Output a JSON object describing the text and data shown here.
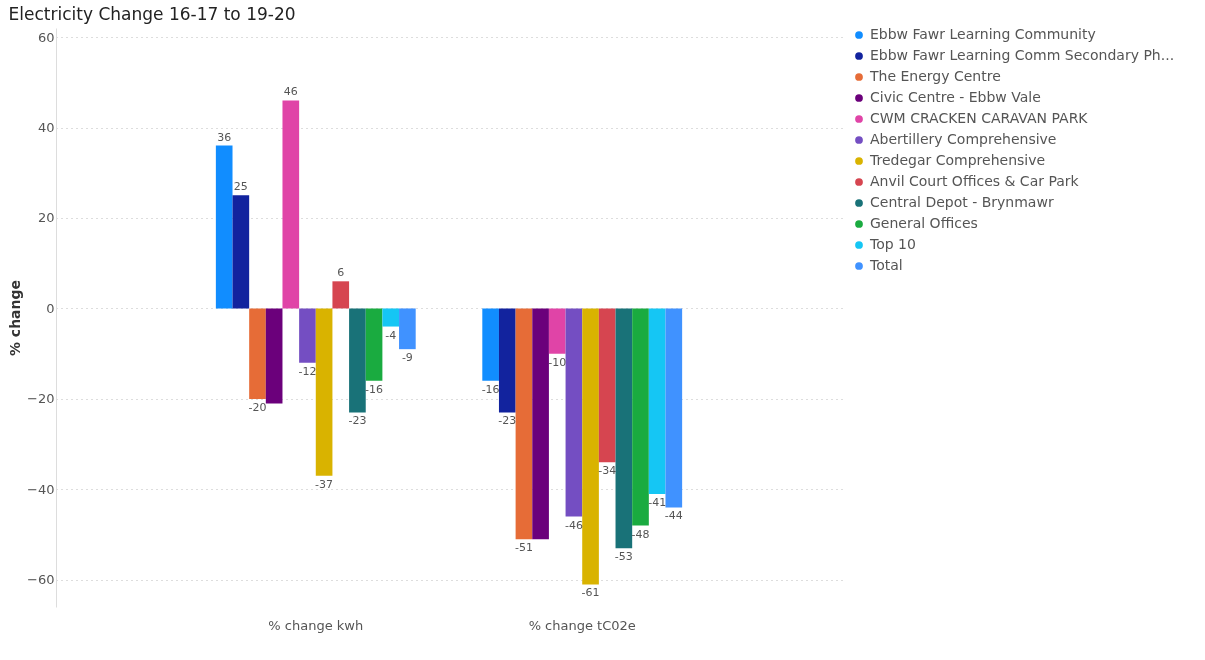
{
  "chart_data": {
    "type": "bar",
    "title": "Electricity Change 16-17 to 19-20",
    "ylabel": "% change",
    "categories": [
      "% change kwh",
      "% change tC02e"
    ],
    "series": [
      {
        "name": "Ebbw Fawr Learning Community",
        "color": "#118dff",
        "values": [
          36,
          -16
        ]
      },
      {
        "name": "Ebbw Fawr Learning Comm Secondary Ph...",
        "color": "#12239e",
        "values": [
          25,
          -23
        ]
      },
      {
        "name": "The Energy Centre",
        "color": "#e66c37",
        "values": [
          -20,
          -51
        ]
      },
      {
        "name": "Civic Centre - Ebbw Vale",
        "color": "#6b007b",
        "values": [
          -21,
          -51
        ],
        "value_labels": [
          null,
          null
        ]
      },
      {
        "name": "CWM CRACKEN CARAVAN PARK",
        "color": "#e044a7",
        "values": [
          46,
          -10
        ]
      },
      {
        "name": "Abertillery Comprehensive",
        "color": "#744ec2",
        "values": [
          -12,
          -46
        ]
      },
      {
        "name": "Tredegar Comprehensive",
        "color": "#d9b300",
        "values": [
          -37,
          -61
        ]
      },
      {
        "name": "Anvil Court Offices & Car Park",
        "color": "#d64550",
        "values": [
          6,
          -34
        ]
      },
      {
        "name": "Central Depot - Brynmawr",
        "color": "#197278",
        "values": [
          -23,
          -53
        ]
      },
      {
        "name": "General Offices",
        "color": "#1aab40",
        "values": [
          -16,
          -48
        ]
      },
      {
        "name": "Top 10",
        "color": "#15c6f4",
        "values": [
          -4,
          -41
        ]
      },
      {
        "name": "Total",
        "color": "#4092ff",
        "values": [
          -9,
          -44
        ]
      }
    ],
    "data_labels": true,
    "ylim": [
      -66,
      62
    ],
    "yticks": [
      -60,
      -40,
      -20,
      0,
      20,
      40,
      60
    ],
    "grid": "y",
    "legend": "top right"
  }
}
